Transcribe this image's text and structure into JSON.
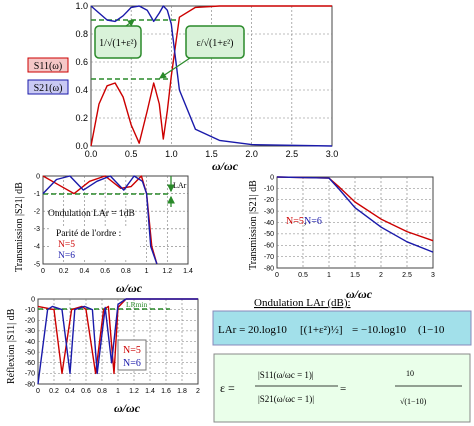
{
  "colors": {
    "s11": "#cc0000",
    "s21": "#1a1aaa",
    "template": "#2a8a2a",
    "grid": "#7a7a7a",
    "badge_bg": "#a2e0ea",
    "note_bg": "#eaffea",
    "n5": "#cc0000",
    "n6": "#1a1aaa"
  },
  "chart_data": [
    {
      "id": "top",
      "type": "line",
      "xlim": [
        0,
        3
      ],
      "ylim": [
        0,
        1
      ],
      "xticks": [
        "0.0",
        "0.5",
        "1.0",
        "1.5",
        "2.0",
        "2.5",
        "3.0"
      ],
      "yticks": [
        "0.0",
        "0.2",
        "0.4",
        "0.6",
        "0.8",
        "1.0"
      ],
      "xlabel": "ω/ωc",
      "legend": [
        "S11(ω)",
        "S21(ω)"
      ],
      "annotations": [
        "1/√(1+ε²)",
        "ε/√(1+ε²)"
      ],
      "series": [
        {
          "name": "S11(ω)",
          "x": [
            0,
            0.1,
            0.2,
            0.3,
            0.4,
            0.5,
            0.6,
            0.7,
            0.78,
            0.85,
            0.9,
            0.95,
            1.0,
            1.1,
            1.3,
            1.6,
            2.0,
            3.0
          ],
          "y": [
            0,
            0.3,
            0.43,
            0.45,
            0.35,
            0.15,
            0.02,
            0.25,
            0.45,
            0.3,
            0.05,
            0.25,
            0.5,
            0.92,
            0.99,
            1,
            1,
            1
          ]
        },
        {
          "name": "S21(ω)",
          "x": [
            0,
            0.1,
            0.2,
            0.3,
            0.4,
            0.5,
            0.6,
            0.7,
            0.78,
            0.85,
            0.9,
            0.95,
            1.0,
            1.1,
            1.3,
            1.6,
            2.0,
            3.0
          ],
          "y": [
            1,
            0.95,
            0.9,
            0.89,
            0.93,
            0.99,
            1,
            0.97,
            0.89,
            0.95,
            1,
            0.97,
            0.87,
            0.4,
            0.12,
            0.04,
            0.01,
            0
          ]
        }
      ]
    },
    {
      "id": "mid-left",
      "type": "line",
      "xlim": [
        0,
        1.4
      ],
      "ylim": [
        -5,
        0
      ],
      "xticks": [
        "0",
        "0.2",
        "0.4",
        "0.6",
        "0.8",
        "1",
        "1.2",
        "1.4"
      ],
      "yticks": [
        "0",
        "-1",
        "-2",
        "-3",
        "-4",
        "-5"
      ],
      "xlabel": "ω/ωc",
      "ylabel": "Transmission |S21| dB",
      "annotations": [
        "Ondulation LAr = 1dB",
        "Parité de l'ordre :",
        "N=5",
        "N=6",
        "LAr"
      ],
      "series": [
        {
          "name": "N=5",
          "x": [
            0,
            0.15,
            0.3,
            0.45,
            0.6,
            0.75,
            0.85,
            0.95,
            1.0,
            1.05,
            1.1
          ],
          "y": [
            0,
            -0.5,
            -1,
            -0.3,
            0,
            -0.7,
            -0.6,
            0,
            -1,
            -4,
            -5
          ]
        },
        {
          "name": "N=6",
          "x": [
            0,
            0.13,
            0.26,
            0.39,
            0.52,
            0.65,
            0.78,
            0.88,
            0.96,
            1.0,
            1.04,
            1.1
          ],
          "y": [
            -1,
            -0.2,
            0,
            -0.8,
            -0.3,
            0,
            -0.8,
            0,
            -0.3,
            -1,
            -4,
            -5
          ]
        }
      ]
    },
    {
      "id": "mid-right",
      "type": "line",
      "xlim": [
        0,
        3
      ],
      "ylim": [
        -80,
        0
      ],
      "xticks": [
        "0",
        "0.5",
        "1",
        "1.5",
        "2",
        "2.5",
        "3"
      ],
      "yticks": [
        "0",
        "-10",
        "-20",
        "-30",
        "-40",
        "-50",
        "-60",
        "-70",
        "-80"
      ],
      "xlabel": "ω/ωc",
      "ylabel": "Transmission |S21| dB",
      "annotations": [
        "N=5",
        "N=6"
      ],
      "series": [
        {
          "name": "N=5",
          "x": [
            0,
            1,
            1.2,
            1.5,
            2,
            2.5,
            3
          ],
          "y": [
            0,
            -1,
            -9,
            -22,
            -37,
            -48,
            -56
          ]
        },
        {
          "name": "N=6",
          "x": [
            0,
            1,
            1.2,
            1.5,
            2,
            2.5,
            3
          ],
          "y": [
            0,
            -1,
            -11,
            -27,
            -44,
            -57,
            -66
          ]
        }
      ]
    },
    {
      "id": "bottom-left",
      "type": "line",
      "xlim": [
        0,
        2
      ],
      "ylim": [
        -80,
        0
      ],
      "xticks": [
        "0",
        "0.2",
        "0.4",
        "0.6",
        "0.8",
        "1",
        "1.2",
        "1.4",
        "1.6",
        "1.8",
        "2"
      ],
      "yticks": [
        "0",
        "-10",
        "-20",
        "-30",
        "-40",
        "-50",
        "-60",
        "-70",
        "-80"
      ],
      "xlabel": "ω/ωc",
      "ylabel": "Réflexion |S11| dB",
      "annotations": [
        "LRmin",
        "N=5",
        "N=6"
      ],
      "series": [
        {
          "name": "N=5",
          "x": [
            0,
            0.2,
            0.3,
            0.42,
            0.55,
            0.6,
            0.72,
            0.82,
            0.88,
            0.95,
            1.0,
            1.1,
            2
          ],
          "y": [
            -7,
            -10,
            -70,
            -10,
            -7,
            -10,
            -70,
            -10,
            -7,
            -70,
            -8,
            0,
            0
          ]
        },
        {
          "name": "N=6",
          "x": [
            0,
            0.12,
            0.18,
            0.3,
            0.4,
            0.46,
            0.58,
            0.68,
            0.74,
            0.84,
            0.92,
            1.0,
            1.1,
            2
          ],
          "y": [
            -80,
            -10,
            -7,
            -10,
            -70,
            -10,
            -7,
            -10,
            -70,
            -8,
            -60,
            -5,
            0,
            0
          ]
        }
      ]
    }
  ],
  "formulas": {
    "ripple_title": "Ondulation LAr (dB):",
    "lar_lhs": "LAr = 20.log10",
    "lar_mid": "= −10.log10",
    "eps_lhs": "ε ="
  }
}
